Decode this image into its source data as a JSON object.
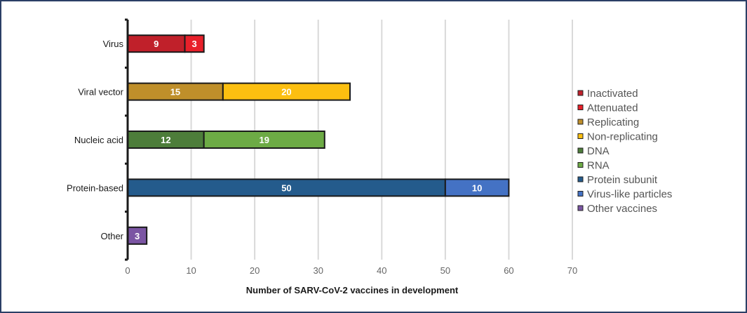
{
  "chart_data": {
    "type": "bar",
    "orientation": "horizontal",
    "stacked": true,
    "categories": [
      "Virus",
      "Viral vector",
      "Nucleic acid",
      "Protein-based",
      "Other"
    ],
    "segments": [
      [
        {
          "series": "Inactivated",
          "value": 9
        },
        {
          "series": "Attenuated",
          "value": 3
        }
      ],
      [
        {
          "series": "Replicating",
          "value": 15
        },
        {
          "series": "Non-replicating",
          "value": 20
        }
      ],
      [
        {
          "series": "DNA",
          "value": 12
        },
        {
          "series": "RNA",
          "value": 19
        }
      ],
      [
        {
          "series": "Protein subunit",
          "value": 50
        },
        {
          "series": "Virus-like particles",
          "value": 10
        }
      ],
      [
        {
          "series": "Other vaccines",
          "value": 3
        }
      ]
    ],
    "legend": [
      {
        "name": "Inactivated",
        "color": "#c0202a"
      },
      {
        "name": "Attenuated",
        "color": "#e8202a"
      },
      {
        "name": "Replicating",
        "color": "#bf8f2a"
      },
      {
        "name": "Non-replicating",
        "color": "#fcbf10"
      },
      {
        "name": "DNA",
        "color": "#4d7d3a"
      },
      {
        "name": "RNA",
        "color": "#6dab45"
      },
      {
        "name": "Protein subunit",
        "color": "#245b8c"
      },
      {
        "name": "Virus-like particles",
        "color": "#4472c4"
      },
      {
        "name": "Other vaccines",
        "color": "#7b55a3"
      }
    ],
    "legend_position": "right",
    "xlabel": "Number of SARV-CoV-2 vaccines in development",
    "ylabel": "",
    "xlim": [
      0,
      70
    ],
    "xticks": [
      "0",
      "10",
      "20",
      "30",
      "40",
      "50",
      "60",
      "70"
    ],
    "grid": "vertical"
  }
}
